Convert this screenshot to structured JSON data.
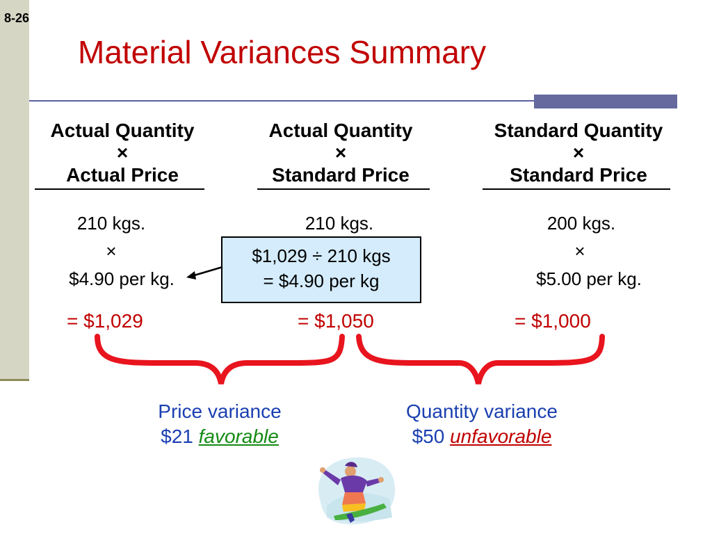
{
  "slide": {
    "number": "8-26",
    "title": "Material Variances Summary"
  },
  "columns": [
    {
      "line1": "Actual Quantity",
      "times": "×",
      "line2": "Actual Price",
      "qty": "210 kgs.",
      "op": "×",
      "price": "$4.90 per kg.",
      "result": "= $1,029"
    },
    {
      "line1": "Actual Quantity",
      "times": "×",
      "line2": "Standard Price",
      "qty": "210 kgs.",
      "result": "= $1,050"
    },
    {
      "line1": "Standard Quantity",
      "times": "×",
      "line2": "Standard Price",
      "qty": "200 kgs.",
      "op": "×",
      "price": "$5.00 per kg.",
      "result": "= $1,000"
    }
  ],
  "callout": {
    "line1": "$1,029 ÷ 210 kgs",
    "line2": "= $4.90 per kg"
  },
  "variances": [
    {
      "label": "Price variance",
      "amount": "$21",
      "status": "favorable"
    },
    {
      "label": "Quantity variance",
      "amount": "$50",
      "status": "unfavorable"
    }
  ],
  "colors": {
    "title": "#c00000",
    "brace": "#e8141e",
    "variance": "#1a3fb0",
    "favorable": "#148a14",
    "unfavorable": "#c00000",
    "callout_bg": "#d4ecfc"
  },
  "icons": {
    "clipart": "snowboarder-clipart"
  }
}
